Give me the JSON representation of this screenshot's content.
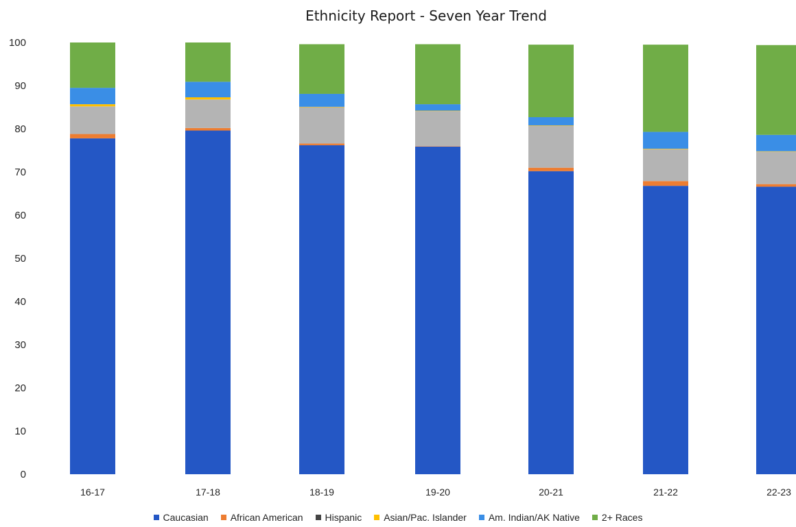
{
  "chart_data": {
    "type": "bar",
    "stacked": true,
    "title": "Ethnicity Report - Seven Year Trend",
    "xlabel": "",
    "ylabel": "",
    "ylim": [
      0,
      100
    ],
    "yticks": [
      0,
      10,
      20,
      30,
      40,
      50,
      60,
      70,
      80,
      90,
      100
    ],
    "grid": false,
    "legend_position": "bottom",
    "categories": [
      "16-17",
      "17-18",
      "18-19",
      "19-20",
      "20-21",
      "21-22",
      "22-23"
    ],
    "series": [
      {
        "name": "Caucasian",
        "color": "#2457c5",
        "values": [
          77.8,
          79.6,
          76.2,
          75.9,
          70.2,
          66.8,
          66.6
        ]
      },
      {
        "name": "African American",
        "color": "#ed7d31",
        "values": [
          1.0,
          0.6,
          0.4,
          0.1,
          0.8,
          1.1,
          0.6
        ]
      },
      {
        "name": "Hispanic",
        "color": "#b4b4b4",
        "values": [
          6.4,
          6.6,
          8.4,
          8.1,
          9.7,
          7.4,
          7.5
        ]
      },
      {
        "name": "Asian/Pac. Islander",
        "color": "#ffc000",
        "values": [
          0.5,
          0.5,
          0.1,
          0.1,
          0.1,
          0.1,
          0.1
        ]
      },
      {
        "name": "Am. Indian/AK Native",
        "color": "#3a8ee6",
        "values": [
          3.8,
          3.6,
          3.0,
          1.5,
          1.9,
          3.9,
          3.8
        ]
      },
      {
        "name": "2+ Races",
        "color": "#70ad47",
        "values": [
          10.5,
          9.1,
          11.5,
          13.9,
          16.8,
          20.2,
          20.8
        ]
      }
    ]
  }
}
